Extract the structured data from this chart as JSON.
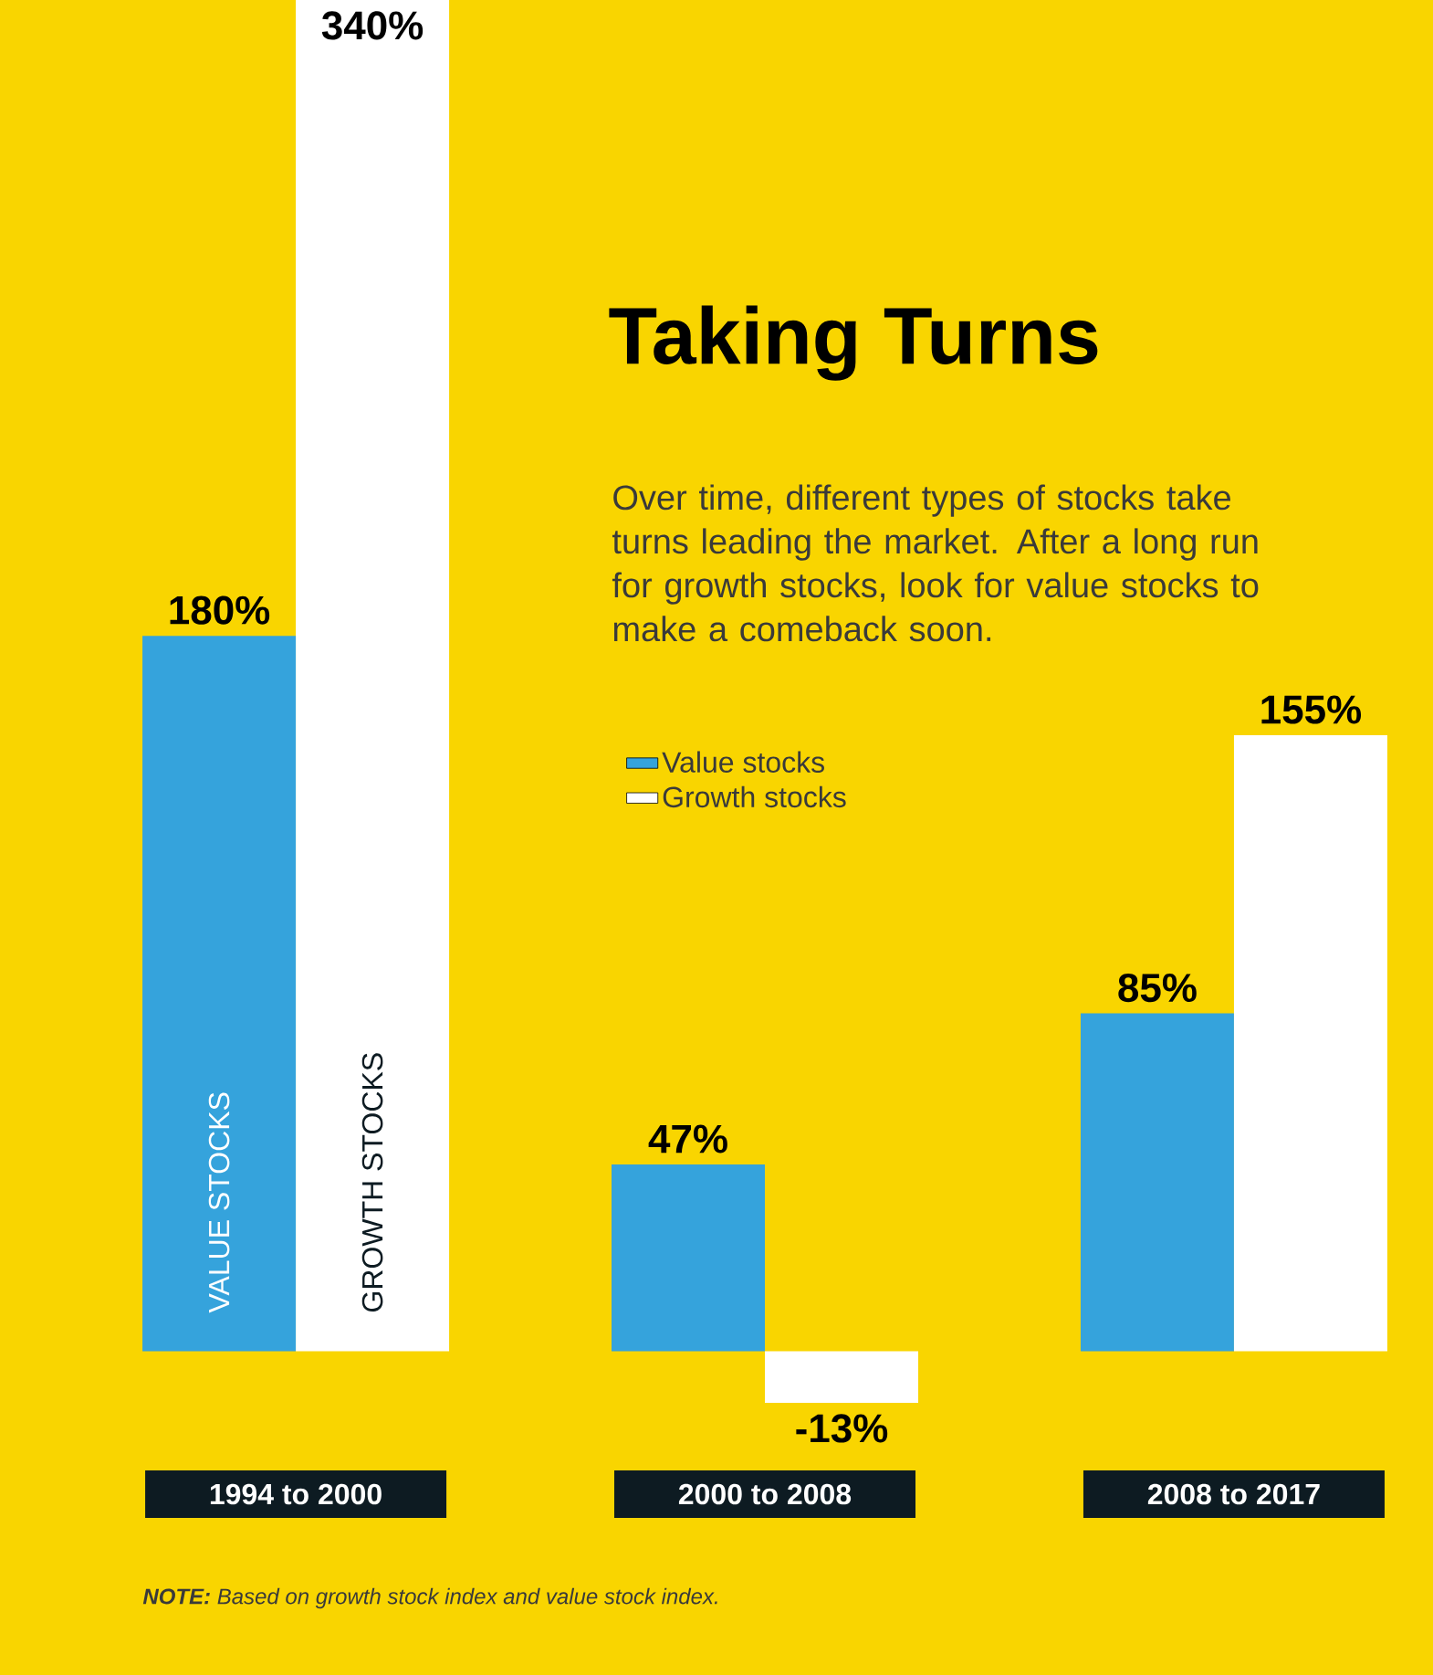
{
  "chart_data": {
    "type": "bar",
    "title": "Taking Turns",
    "subtitle": "Over time, different types of stocks take turns leading the market. After a long run for growth stocks, look for value stocks to make a comeback soon.",
    "categories": [
      "1994 to 2000",
      "2000 to 2008",
      "2008 to 2017"
    ],
    "series": [
      {
        "name": "Value stocks",
        "color": "#35A3DC",
        "values": [
          180,
          47,
          85
        ],
        "value_labels": [
          "180%",
          "47%",
          "85%"
        ]
      },
      {
        "name": "Growth stocks",
        "color": "#FFFFFF",
        "values": [
          340,
          -13,
          155
        ],
        "value_labels": [
          "340%",
          "-13%",
          "155%"
        ]
      }
    ],
    "legend": "center",
    "annotations": [
      {
        "text": "VALUE STOCKS",
        "x": "1994 to 2000",
        "y": 8
      },
      {
        "text": "GROWTH STOCKS",
        "x": "1994 to 2000",
        "y": 8
      },
      "**NOTE:** Based on growth stock index and value stock index."
    ]
  }
}
